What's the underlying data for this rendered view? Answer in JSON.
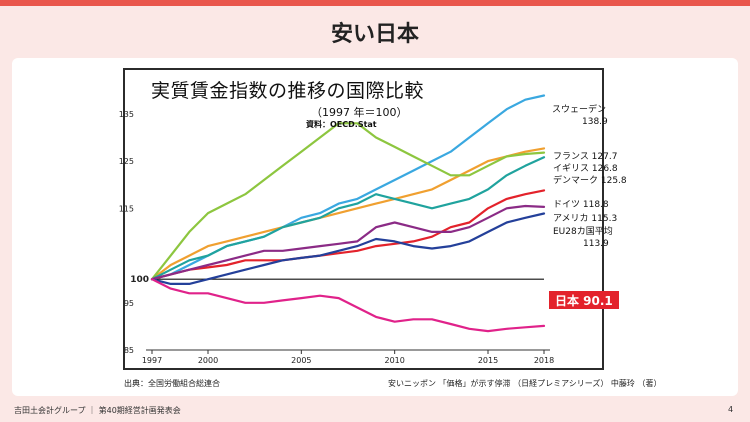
{
  "slide": {
    "title": "安い日本",
    "footer": "吉田土会計グループ ｜ 第40期経営計画発表会",
    "page_number": "4",
    "source_left": "出典：全国労働組合総連合",
    "source_right": "安いニッポン 「価格」が示す停滞 （日経プレミアシリーズ） 中藤玲 （著）"
  },
  "colors": {
    "accent": "#e9564c",
    "background": "#fbe8e6"
  },
  "chart_data": {
    "type": "line",
    "title": "実質賃金指数の推移の国際比較",
    "subtitle": "（1997 年＝100）",
    "source": "資料：OECD.Stat",
    "x_ticks": [
      1997,
      2000,
      2005,
      2010,
      2015,
      2018
    ],
    "y_ticks": [
      85,
      95,
      100,
      115,
      125,
      135
    ],
    "xlim": [
      1997,
      2018
    ],
    "ylim": [
      85,
      139
    ],
    "baseline": 100,
    "series": [
      {
        "name": "スウェーデン",
        "value_label": "138.9",
        "color": "#3aa8e0",
        "x": [
          1997,
          1998,
          1999,
          2000,
          2001,
          2002,
          2003,
          2004,
          2005,
          2006,
          2007,
          2008,
          2009,
          2010,
          2011,
          2012,
          2013,
          2014,
          2015,
          2016,
          2017,
          2018
        ],
        "y": [
          100,
          101,
          103,
          105,
          107,
          108,
          109,
          111,
          113,
          114,
          116,
          117,
          119,
          121,
          123,
          125,
          127,
          130,
          133,
          136,
          138,
          138.9
        ]
      },
      {
        "name": "フランス",
        "value_label": "127.7",
        "color": "#f0a030",
        "x": [
          1997,
          1998,
          1999,
          2000,
          2001,
          2002,
          2003,
          2004,
          2005,
          2006,
          2007,
          2008,
          2009,
          2010,
          2011,
          2012,
          2013,
          2014,
          2015,
          2016,
          2017,
          2018
        ],
        "y": [
          100,
          103,
          105,
          107,
          108,
          109,
          110,
          111,
          112,
          113,
          114,
          115,
          116,
          117,
          118,
          119,
          121,
          123,
          125,
          126,
          127,
          127.7
        ]
      },
      {
        "name": "イギリス",
        "value_label": "126.8",
        "color": "#8dc63f",
        "x": [
          1997,
          1998,
          1999,
          2000,
          2001,
          2002,
          2003,
          2004,
          2005,
          2006,
          2007,
          2008,
          2009,
          2010,
          2011,
          2012,
          2013,
          2014,
          2015,
          2016,
          2017,
          2018
        ],
        "y": [
          100,
          105,
          110,
          114,
          116,
          118,
          121,
          124,
          127,
          130,
          133,
          133,
          130,
          128,
          126,
          124,
          122,
          122,
          124,
          126,
          126.5,
          126.8
        ]
      },
      {
        "name": "デンマーク",
        "value_label": "125.8",
        "color": "#20a39e",
        "x": [
          1997,
          1998,
          1999,
          2000,
          2001,
          2002,
          2003,
          2004,
          2005,
          2006,
          2007,
          2008,
          2009,
          2010,
          2011,
          2012,
          2013,
          2014,
          2015,
          2016,
          2017,
          2018
        ],
        "y": [
          100,
          102,
          104,
          105,
          107,
          108,
          109,
          111,
          112,
          113,
          115,
          116,
          118,
          117,
          116,
          115,
          116,
          117,
          119,
          122,
          124,
          125.8
        ]
      },
      {
        "name": "ドイツ",
        "value_label": "118.8",
        "color": "#e3222b",
        "x": [
          1997,
          1998,
          1999,
          2000,
          2001,
          2002,
          2003,
          2004,
          2005,
          2006,
          2007,
          2008,
          2009,
          2010,
          2011,
          2012,
          2013,
          2014,
          2015,
          2016,
          2017,
          2018
        ],
        "y": [
          100,
          101,
          102,
          102.5,
          103,
          104,
          104,
          104,
          104.5,
          105,
          105.5,
          106,
          107,
          107.5,
          108,
          109,
          111,
          112,
          115,
          117,
          118,
          118.8
        ]
      },
      {
        "name": "アメリカ",
        "value_label": "115.3",
        "color": "#8b2b86",
        "x": [
          1997,
          1998,
          1999,
          2000,
          2001,
          2002,
          2003,
          2004,
          2005,
          2006,
          2007,
          2008,
          2009,
          2010,
          2011,
          2012,
          2013,
          2014,
          2015,
          2016,
          2017,
          2018
        ],
        "y": [
          100,
          101,
          102,
          103,
          104,
          105,
          106,
          106,
          106.5,
          107,
          107.5,
          108,
          111,
          112,
          111,
          110,
          110,
          111,
          113,
          115,
          115.5,
          115.3
        ]
      },
      {
        "name": "EU28カ国平均",
        "value_label": "113.9",
        "color": "#24409a",
        "x": [
          1997,
          1998,
          1999,
          2000,
          2001,
          2002,
          2003,
          2004,
          2005,
          2006,
          2007,
          2008,
          2009,
          2010,
          2011,
          2012,
          2013,
          2014,
          2015,
          2016,
          2017,
          2018
        ],
        "y": [
          100,
          99,
          99,
          100,
          101,
          102,
          103,
          104,
          104.5,
          105,
          106,
          107,
          108.5,
          108,
          107,
          106.5,
          107,
          108,
          110,
          112,
          113,
          113.9
        ]
      },
      {
        "name": "日本",
        "value_label": "90.1",
        "color": "#e0228a",
        "x": [
          1997,
          1998,
          1999,
          2000,
          2001,
          2002,
          2003,
          2004,
          2005,
          2006,
          2007,
          2008,
          2009,
          2010,
          2011,
          2012,
          2013,
          2014,
          2015,
          2016,
          2017,
          2018
        ],
        "y": [
          100,
          98,
          97,
          97,
          96,
          95,
          95,
          95.5,
          96,
          96.5,
          96,
          94,
          92,
          91,
          91.5,
          91.5,
          90.5,
          89.5,
          89,
          89.5,
          89.8,
          90.1
        ]
      }
    ]
  }
}
